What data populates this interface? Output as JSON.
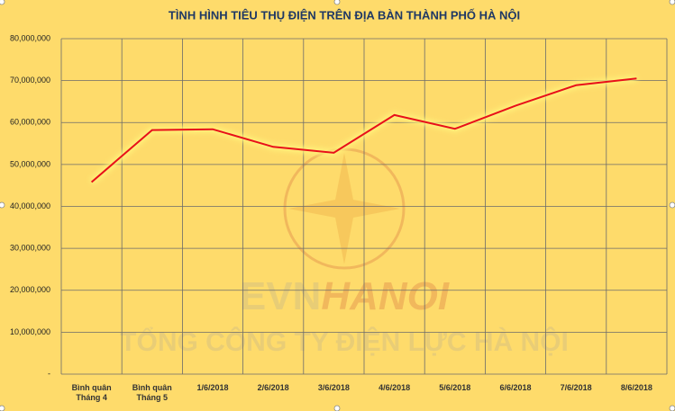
{
  "chart_data": {
    "type": "line",
    "title": "TÌNH HÌNH TIÊU THỤ ĐIỆN TRÊN ĐỊA BÀN THÀNH PHỐ HÀ NỘI",
    "watermark": {
      "brand_left": "EVN",
      "brand_right": "HANOI",
      "company": "TỔNG CÔNG TY ĐIỆN LỰC HÀ NỘI"
    },
    "categories": [
      "Bình quân Tháng 4",
      "Bình quân Tháng 5",
      "1/6/2018",
      "2/6/2018",
      "3/6/2018",
      "4/6/2018",
      "5/6/2018",
      "6/6/2018",
      "7/6/2018",
      "8/6/2018"
    ],
    "series": [
      {
        "color": "#e8101a",
        "values": [
          45800000,
          58200000,
          58400000,
          54200000,
          52800000,
          61800000,
          58500000,
          64000000,
          68900000,
          70500000
        ]
      }
    ],
    "ylim": [
      0,
      80000000
    ],
    "yticks": [
      {
        "value": 0,
        "label": "-"
      },
      {
        "value": 10000000,
        "label": "10,000,000"
      },
      {
        "value": 20000000,
        "label": "20,000,000"
      },
      {
        "value": 30000000,
        "label": "30,000,000"
      },
      {
        "value": 40000000,
        "label": "40,000,000"
      },
      {
        "value": 50000000,
        "label": "50,000,000"
      },
      {
        "value": 60000000,
        "label": "60,000,000"
      },
      {
        "value": 70000000,
        "label": "70,000,000"
      },
      {
        "value": 80000000,
        "label": "80,000,000"
      }
    ],
    "grid": true
  }
}
